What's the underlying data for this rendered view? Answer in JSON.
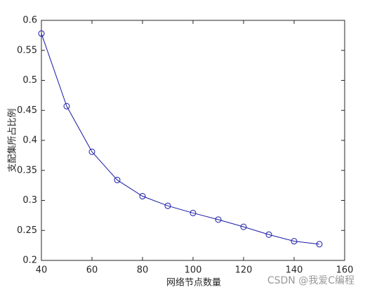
{
  "chart_data": {
    "type": "line",
    "x": [
      40,
      50,
      60,
      70,
      80,
      90,
      100,
      110,
      120,
      130,
      140,
      150
    ],
    "series": [
      {
        "name": null,
        "color": "#1a1aa6",
        "marker": "circle",
        "values": [
          0.578,
          0.457,
          0.381,
          0.334,
          0.307,
          0.291,
          0.279,
          0.268,
          0.256,
          0.243,
          0.232,
          0.227
        ]
      }
    ],
    "xlim": [
      40,
      160
    ],
    "xticks": [
      40,
      60,
      80,
      100,
      120,
      140,
      160
    ],
    "ylim": [
      0.2,
      0.6
    ],
    "yticks": [
      0.2,
      0.25,
      0.3,
      0.35,
      0.4,
      0.45,
      0.5,
      0.55,
      0.6
    ],
    "xlabel": "网络节点数量",
    "ylabel": "支配集所占比例",
    "watermark": "CSDN @我爱C编程"
  }
}
